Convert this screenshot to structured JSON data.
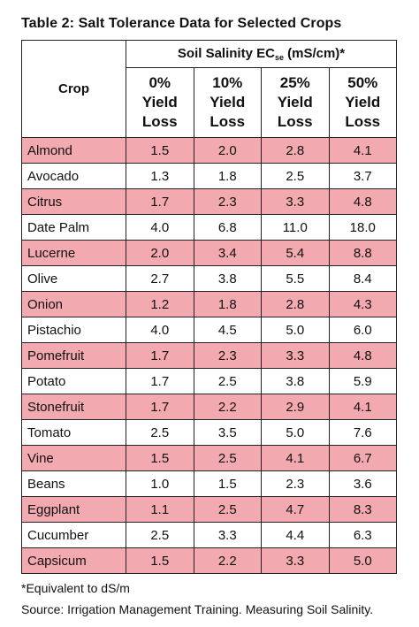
{
  "title": "Table 2: Salt Tolerance Data for Selected Crops",
  "header": {
    "group_label_main": "Soil Salinity EC",
    "group_label_sub": "se",
    "group_label_units": " (mS/cm)*",
    "crop_label": "Crop",
    "columns": [
      {
        "line1": "0%",
        "line2": "Yield",
        "line3": "Loss"
      },
      {
        "line1": "10%",
        "line2": "Yield",
        "line3": "Loss"
      },
      {
        "line1": "25%",
        "line2": "Yield",
        "line3": "Loss"
      },
      {
        "line1": "50%",
        "line2": "Yield",
        "line3": "Loss"
      }
    ]
  },
  "rows": [
    {
      "crop": "Almond",
      "v0": "1.5",
      "v1": "2.0",
      "v2": "2.8",
      "v3": "4.1"
    },
    {
      "crop": "Avocado",
      "v0": "1.3",
      "v1": "1.8",
      "v2": "2.5",
      "v3": "3.7"
    },
    {
      "crop": "Citrus",
      "v0": "1.7",
      "v1": "2.3",
      "v2": "3.3",
      "v3": "4.8"
    },
    {
      "crop": "Date Palm",
      "v0": "4.0",
      "v1": "6.8",
      "v2": "11.0",
      "v3": "18.0"
    },
    {
      "crop": "Lucerne",
      "v0": "2.0",
      "v1": "3.4",
      "v2": "5.4",
      "v3": "8.8"
    },
    {
      "crop": "Olive",
      "v0": "2.7",
      "v1": "3.8",
      "v2": "5.5",
      "v3": "8.4"
    },
    {
      "crop": "Onion",
      "v0": "1.2",
      "v1": "1.8",
      "v2": "2.8",
      "v3": "4.3"
    },
    {
      "crop": "Pistachio",
      "v0": "4.0",
      "v1": "4.5",
      "v2": "5.0",
      "v3": "6.0"
    },
    {
      "crop": "Pomefruit",
      "v0": "1.7",
      "v1": "2.3",
      "v2": "3.3",
      "v3": "4.8"
    },
    {
      "crop": "Potato",
      "v0": "1.7",
      "v1": "2.5",
      "v2": "3.8",
      "v3": "5.9"
    },
    {
      "crop": "Stonefruit",
      "v0": "1.7",
      "v1": "2.2",
      "v2": "2.9",
      "v3": "4.1"
    },
    {
      "crop": "Tomato",
      "v0": "2.5",
      "v1": "3.5",
      "v2": "5.0",
      "v3": "7.6"
    },
    {
      "crop": "Vine",
      "v0": "1.5",
      "v1": "2.5",
      "v2": "4.1",
      "v3": "6.7"
    },
    {
      "crop": "Beans",
      "v0": "1.0",
      "v1": "1.5",
      "v2": "2.3",
      "v3": "3.6"
    },
    {
      "crop": "Eggplant",
      "v0": "1.1",
      "v1": "2.5",
      "v2": "4.7",
      "v3": "8.3"
    },
    {
      "crop": "Cucumber",
      "v0": "2.5",
      "v1": "3.3",
      "v2": "4.4",
      "v3": "6.3"
    },
    {
      "crop": "Capsicum",
      "v0": "1.5",
      "v1": "2.2",
      "v2": "3.3",
      "v3": "5.0"
    }
  ],
  "footnote": "*Equivalent to dS/m",
  "source": "Source: Irrigation Management Training. Measuring Soil Salinity.",
  "colors": {
    "shaded_row": "#f3a9b0",
    "plain_row": "#ffffff"
  }
}
